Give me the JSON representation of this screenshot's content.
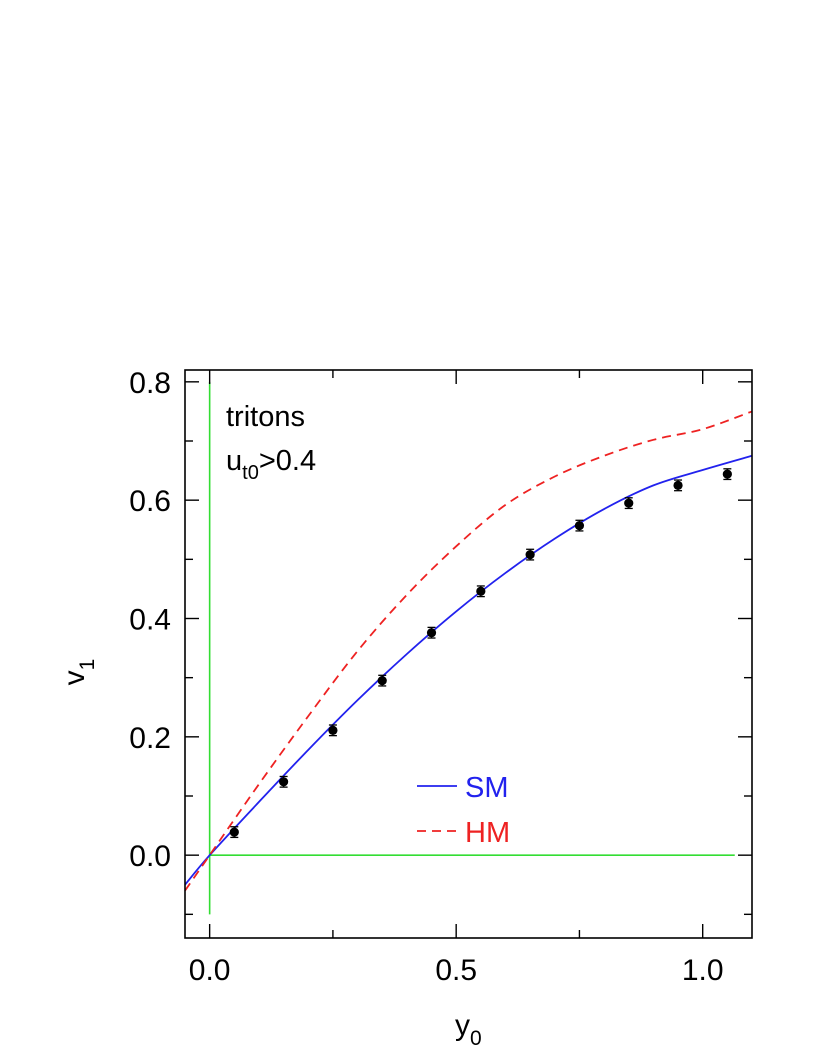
{
  "chart_data": {
    "type": "line",
    "xlabel": "y",
    "xlabel_sub": "0",
    "ylabel": "v",
    "ylabel_sub": "1",
    "xlim": [
      -0.05,
      1.1
    ],
    "ylim": [
      -0.14,
      0.82
    ],
    "x_major_ticks": [
      0.0,
      0.5,
      1.0
    ],
    "x_tick_labels": [
      "0.0",
      "0.5",
      "1.0"
    ],
    "x_minor_ticks": [
      0.25,
      0.75
    ],
    "y_major_ticks": [
      0.0,
      0.2,
      0.4,
      0.6,
      0.8
    ],
    "y_tick_labels": [
      "0.0",
      "0.2",
      "0.4",
      "0.6",
      "0.8"
    ],
    "y_minor_ticks": [
      -0.1,
      0.1,
      0.3,
      0.5,
      0.7
    ],
    "annotation": {
      "line1": "tritons",
      "line2_main": "u",
      "line2_sub": "t0",
      "line2_rest": ">0.4"
    },
    "reference_lines": {
      "color": "#33dd33",
      "vertical_x": 0.0,
      "vertical_range": [
        -0.1,
        0.8
      ],
      "horizontal_y": 0.0,
      "horizontal_range": [
        0.0,
        1.065
      ]
    },
    "data_points": {
      "x": [
        0.05,
        0.15,
        0.25,
        0.35,
        0.45,
        0.55,
        0.65,
        0.75,
        0.85,
        0.95,
        1.05
      ],
      "y": [
        0.039,
        0.124,
        0.211,
        0.295,
        0.376,
        0.446,
        0.508,
        0.557,
        0.595,
        0.625,
        0.644
      ],
      "err": [
        0.009,
        0.009,
        0.009,
        0.009,
        0.009,
        0.009,
        0.009,
        0.009,
        0.009,
        0.009,
        0.009
      ],
      "color": "#000000"
    },
    "series": [
      {
        "name": "SM",
        "color": "#2222ee",
        "style": "solid",
        "x": [
          -0.05,
          0.0,
          0.1,
          0.2,
          0.3,
          0.4,
          0.5,
          0.6,
          0.7,
          0.8,
          0.9,
          1.0,
          1.1
        ],
        "y": [
          -0.05,
          0.0,
          0.09,
          0.178,
          0.262,
          0.34,
          0.412,
          0.477,
          0.535,
          0.585,
          0.625,
          0.651,
          0.675
        ]
      },
      {
        "name": "HM",
        "color": "#ee2222",
        "style": "dashed",
        "x": [
          -0.05,
          0.0,
          0.1,
          0.2,
          0.3,
          0.4,
          0.5,
          0.6,
          0.7,
          0.8,
          0.9,
          1.0,
          1.1
        ],
        "y": [
          -0.06,
          0.0,
          0.12,
          0.235,
          0.345,
          0.44,
          0.522,
          0.592,
          0.64,
          0.675,
          0.702,
          0.72,
          0.75
        ]
      }
    ],
    "legend_position": "lower-center"
  }
}
